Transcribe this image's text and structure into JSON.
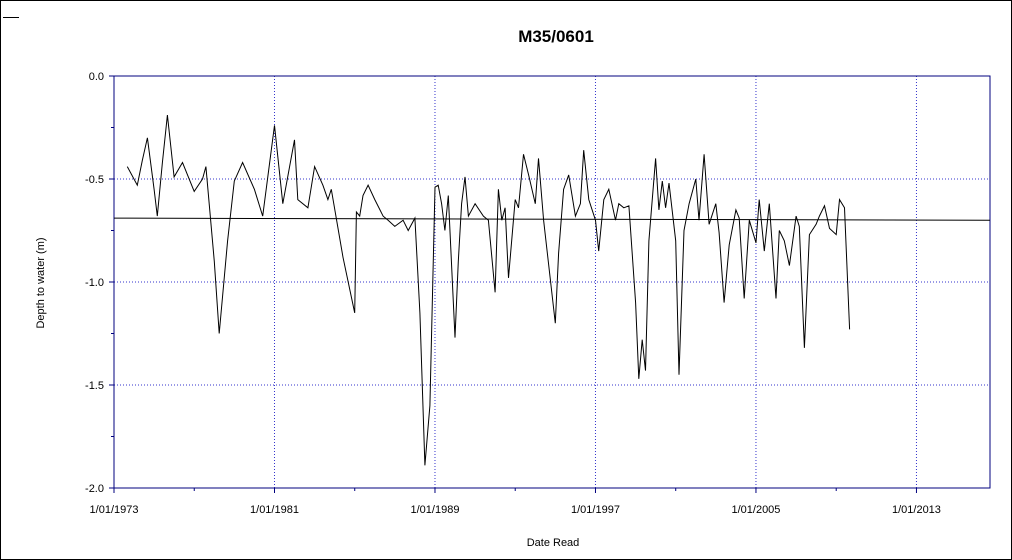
{
  "chart_data": {
    "type": "line",
    "title": "M35/0601",
    "xlabel": "Date Read",
    "ylabel": "Depth to water (m)",
    "xlim": [
      "1973-01-01",
      "2016-09-01"
    ],
    "ylim": [
      -2.0,
      0.0
    ],
    "x_ticks": [
      "1/01/1973",
      "1/01/1981",
      "1/01/1989",
      "1/01/1997",
      "1/01/2005",
      "1/01/2013"
    ],
    "y_ticks": [
      "0.0",
      "-0.5",
      "-1.0",
      "-1.5",
      "-2.0"
    ],
    "grid": true,
    "colors": {
      "axis": "#00007f",
      "grid": "#3333cc",
      "series": "#000000"
    },
    "series": [
      {
        "values": [
          [
            "1973-09-01",
            -0.44
          ],
          [
            "1974-03-01",
            -0.53
          ],
          [
            "1974-06-01",
            -0.41
          ],
          [
            "1974-09-01",
            -0.3
          ],
          [
            "1975-01-01",
            -0.55
          ],
          [
            "1975-03-01",
            -0.68
          ],
          [
            "1975-06-01",
            -0.42
          ],
          [
            "1975-09-01",
            -0.19
          ],
          [
            "1976-01-01",
            -0.49
          ],
          [
            "1976-06-01",
            -0.42
          ],
          [
            "1977-01-01",
            -0.56
          ],
          [
            "1977-06-01",
            -0.5
          ],
          [
            "1977-08-01",
            -0.44
          ],
          [
            "1978-01-01",
            -0.9
          ],
          [
            "1978-04-01",
            -1.25
          ],
          [
            "1978-09-01",
            -0.8
          ],
          [
            "1979-01-01",
            -0.51
          ],
          [
            "1979-06-01",
            -0.42
          ],
          [
            "1980-01-01",
            -0.55
          ],
          [
            "1980-06-01",
            -0.68
          ],
          [
            "1981-01-01",
            -0.24
          ],
          [
            "1981-06-01",
            -0.62
          ],
          [
            "1982-01-01",
            -0.31
          ],
          [
            "1982-03-01",
            -0.6
          ],
          [
            "1982-09-01",
            -0.64
          ],
          [
            "1983-01-01",
            -0.44
          ],
          [
            "1983-06-01",
            -0.53
          ],
          [
            "1983-09-01",
            -0.6
          ],
          [
            "1983-11-01",
            -0.55
          ],
          [
            "1984-06-01",
            -0.88
          ],
          [
            "1985-01-01",
            -1.15
          ],
          [
            "1985-02-01",
            -0.66
          ],
          [
            "1985-04-01",
            -0.68
          ],
          [
            "1985-06-01",
            -0.58
          ],
          [
            "1985-09-01",
            -0.53
          ],
          [
            "1986-01-01",
            -0.6
          ],
          [
            "1986-06-01",
            -0.68
          ],
          [
            "1986-09-01",
            -0.7
          ],
          [
            "1987-01-01",
            -0.73
          ],
          [
            "1987-06-01",
            -0.7
          ],
          [
            "1987-09-01",
            -0.75
          ],
          [
            "1988-01-01",
            -0.69
          ],
          [
            "1988-04-01",
            -1.15
          ],
          [
            "1988-07-01",
            -1.89
          ],
          [
            "1988-10-01",
            -1.6
          ],
          [
            "1989-01-01",
            -0.54
          ],
          [
            "1989-03-01",
            -0.53
          ],
          [
            "1989-05-01",
            -0.62
          ],
          [
            "1989-07-01",
            -0.75
          ],
          [
            "1989-09-01",
            -0.58
          ],
          [
            "1990-01-01",
            -1.27
          ],
          [
            "1990-03-01",
            -0.9
          ],
          [
            "1990-05-01",
            -0.62
          ],
          [
            "1990-07-01",
            -0.49
          ],
          [
            "1990-09-01",
            -0.68
          ],
          [
            "1991-01-01",
            -0.62
          ],
          [
            "1991-06-01",
            -0.68
          ],
          [
            "1991-09-01",
            -0.7
          ],
          [
            "1992-01-01",
            -1.05
          ],
          [
            "1992-03-01",
            -0.55
          ],
          [
            "1992-05-01",
            -0.7
          ],
          [
            "1992-07-01",
            -0.64
          ],
          [
            "1992-09-01",
            -0.98
          ],
          [
            "1993-01-01",
            -0.6
          ],
          [
            "1993-03-01",
            -0.64
          ],
          [
            "1993-06-01",
            -0.38
          ],
          [
            "1993-09-01",
            -0.48
          ],
          [
            "1994-01-01",
            -0.62
          ],
          [
            "1994-03-01",
            -0.4
          ],
          [
            "1994-06-01",
            -0.7
          ],
          [
            "1995-01-01",
            -1.2
          ],
          [
            "1995-03-01",
            -0.86
          ],
          [
            "1995-06-01",
            -0.55
          ],
          [
            "1995-09-01",
            -0.48
          ],
          [
            "1996-01-01",
            -0.68
          ],
          [
            "1996-04-01",
            -0.62
          ],
          [
            "1996-06-01",
            -0.36
          ],
          [
            "1996-09-01",
            -0.6
          ],
          [
            "1997-01-01",
            -0.7
          ],
          [
            "1997-03-01",
            -0.85
          ],
          [
            "1997-06-01",
            -0.6
          ],
          [
            "1997-09-01",
            -0.55
          ],
          [
            "1998-01-01",
            -0.7
          ],
          [
            "1998-03-01",
            -0.62
          ],
          [
            "1998-06-01",
            -0.64
          ],
          [
            "1998-09-01",
            -0.63
          ],
          [
            "1999-01-01",
            -1.1
          ],
          [
            "1999-03-01",
            -1.47
          ],
          [
            "1999-05-01",
            -1.28
          ],
          [
            "1999-07-01",
            -1.43
          ],
          [
            "1999-09-01",
            -0.8
          ],
          [
            "2000-01-01",
            -0.4
          ],
          [
            "2000-03-01",
            -0.65
          ],
          [
            "2000-05-01",
            -0.51
          ],
          [
            "2000-07-01",
            -0.64
          ],
          [
            "2000-09-01",
            -0.52
          ],
          [
            "2001-01-01",
            -0.8
          ],
          [
            "2001-03-01",
            -1.45
          ],
          [
            "2001-06-01",
            -0.75
          ],
          [
            "2001-09-01",
            -0.62
          ],
          [
            "2002-01-01",
            -0.5
          ],
          [
            "2002-03-01",
            -0.7
          ],
          [
            "2002-06-01",
            -0.38
          ],
          [
            "2002-09-01",
            -0.72
          ],
          [
            "2003-01-01",
            -0.62
          ],
          [
            "2003-03-01",
            -0.76
          ],
          [
            "2003-06-01",
            -1.1
          ],
          [
            "2003-09-01",
            -0.82
          ],
          [
            "2004-01-01",
            -0.65
          ],
          [
            "2004-03-01",
            -0.69
          ],
          [
            "2004-06-01",
            -1.08
          ],
          [
            "2004-09-01",
            -0.7
          ],
          [
            "2005-01-01",
            -0.81
          ],
          [
            "2005-03-01",
            -0.6
          ],
          [
            "2005-06-01",
            -0.85
          ],
          [
            "2005-09-01",
            -0.62
          ],
          [
            "2006-01-01",
            -1.08
          ],
          [
            "2006-03-01",
            -0.75
          ],
          [
            "2006-06-01",
            -0.8
          ],
          [
            "2006-09-01",
            -0.92
          ],
          [
            "2007-01-01",
            -0.68
          ],
          [
            "2007-03-01",
            -0.73
          ],
          [
            "2007-06-01",
            -1.32
          ],
          [
            "2007-09-01",
            -0.77
          ],
          [
            "2008-01-01",
            -0.72
          ],
          [
            "2008-03-01",
            -0.68
          ],
          [
            "2008-06-01",
            -0.63
          ],
          [
            "2008-09-01",
            -0.74
          ],
          [
            "2009-01-01",
            -0.77
          ],
          [
            "2009-03-01",
            -0.6
          ],
          [
            "2009-06-01",
            -0.64
          ],
          [
            "2009-09-01",
            -1.23
          ]
        ]
      }
    ],
    "trend_line": {
      "start": [
        "1973-01-01",
        -0.69
      ],
      "end": [
        "2016-09-01",
        -0.7
      ]
    }
  }
}
